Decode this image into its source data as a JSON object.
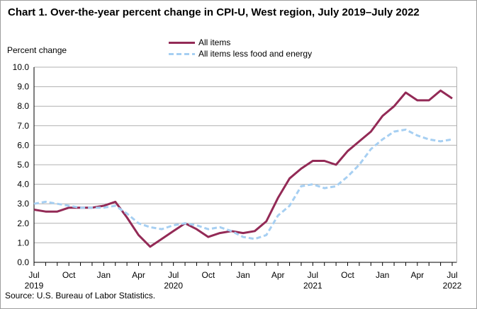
{
  "title": "Chart 1. Over-the-year percent change in CPI-U, West region, July 2019–July 2022",
  "y_axis_unit": "Percent change",
  "source": "Source: U.S. Bureau of Labor Statistics.",
  "colors": {
    "all_items": "#932a56",
    "core": "#a6cff2",
    "grid": "#b0b0b0",
    "axis": "#000000"
  },
  "legend": {
    "items": [
      {
        "label": "All items",
        "style": "solid"
      },
      {
        "label": "All items less food and energy",
        "style": "dashed"
      }
    ]
  },
  "chart_data": {
    "type": "line",
    "title": "Chart 1. Over-the-year percent change in CPI-U, West region, July 2019–July 2022",
    "ylabel": "Percent change",
    "ylim": [
      0.0,
      10.0
    ],
    "ytick_step": 1.0,
    "grid": true,
    "legend_position": "top",
    "x": [
      "Jul 2019",
      "Aug 2019",
      "Sep 2019",
      "Oct 2019",
      "Nov 2019",
      "Dec 2019",
      "Jan 2020",
      "Feb 2020",
      "Mar 2020",
      "Apr 2020",
      "May 2020",
      "Jun 2020",
      "Jul 2020",
      "Aug 2020",
      "Sep 2020",
      "Oct 2020",
      "Nov 2020",
      "Dec 2020",
      "Jan 2021",
      "Feb 2021",
      "Mar 2021",
      "Apr 2021",
      "May 2021",
      "Jun 2021",
      "Jul 2021",
      "Aug 2021",
      "Sep 2021",
      "Oct 2021",
      "Nov 2021",
      "Dec 2021",
      "Jan 2022",
      "Feb 2022",
      "Mar 2022",
      "Apr 2022",
      "May 2022",
      "Jun 2022",
      "Jul 2022"
    ],
    "x_ticks": [
      {
        "i": 0,
        "label": "Jul",
        "year": "2019"
      },
      {
        "i": 3,
        "label": "Oct"
      },
      {
        "i": 6,
        "label": "Jan"
      },
      {
        "i": 9,
        "label": "Apr"
      },
      {
        "i": 12,
        "label": "Jul",
        "year": "2020"
      },
      {
        "i": 15,
        "label": "Oct"
      },
      {
        "i": 18,
        "label": "Jan"
      },
      {
        "i": 21,
        "label": "Apr"
      },
      {
        "i": 24,
        "label": "Jul",
        "year": "2021"
      },
      {
        "i": 27,
        "label": "Oct"
      },
      {
        "i": 30,
        "label": "Jan"
      },
      {
        "i": 33,
        "label": "Apr"
      },
      {
        "i": 36,
        "label": "Jul",
        "year": "2022"
      }
    ],
    "series": [
      {
        "name": "All items",
        "style": "solid",
        "values": [
          2.7,
          2.6,
          2.6,
          2.8,
          2.8,
          2.8,
          2.9,
          3.1,
          2.3,
          1.4,
          0.8,
          1.2,
          1.6,
          2.0,
          1.7,
          1.3,
          1.5,
          1.6,
          1.5,
          1.6,
          2.1,
          3.3,
          4.3,
          4.8,
          5.2,
          5.2,
          5.0,
          5.7,
          6.2,
          6.7,
          7.5,
          8.0,
          8.7,
          8.3,
          8.3,
          8.8,
          8.4
        ]
      },
      {
        "name": "All items less food and energy",
        "style": "dashed",
        "values": [
          3.0,
          3.1,
          3.0,
          2.9,
          2.8,
          2.8,
          2.8,
          2.9,
          2.5,
          2.0,
          1.8,
          1.7,
          1.9,
          2.0,
          1.9,
          1.7,
          1.8,
          1.6,
          1.3,
          1.2,
          1.4,
          2.4,
          2.9,
          3.9,
          4.0,
          3.8,
          3.9,
          4.4,
          5.0,
          5.8,
          6.3,
          6.7,
          6.8,
          6.5,
          6.3,
          6.2,
          6.3
        ]
      }
    ]
  }
}
